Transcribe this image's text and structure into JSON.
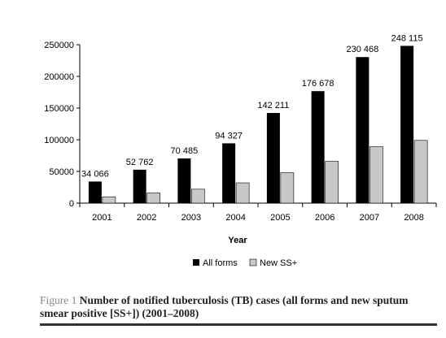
{
  "chart_data": {
    "type": "bar",
    "categories": [
      "2001",
      "2002",
      "2003",
      "2004",
      "2005",
      "2006",
      "2007",
      "2008"
    ],
    "series": [
      {
        "name": "All forms",
        "values": [
          34066,
          52762,
          70485,
          94327,
          142211,
          176678,
          230468,
          248115
        ],
        "color": "#000000"
      },
      {
        "name": "New SS+",
        "values": [
          10000,
          16000,
          22000,
          32000,
          48000,
          66000,
          89000,
          99000
        ],
        "color": "#c8c8c8"
      }
    ],
    "data_labels": [
      "34 066",
      "52 762",
      "70 485",
      "94 327",
      "142 211",
      "176 678",
      "230 468",
      "248 115"
    ],
    "yticks": [
      "0",
      "50000",
      "100000",
      "150000",
      "200000",
      "250000"
    ],
    "ylim": [
      0,
      250000
    ],
    "xlabel": "Year",
    "ylabel": "",
    "legend": [
      "All forms",
      "New SS+"
    ],
    "legend_position": "bottom",
    "grid": false
  },
  "caption": {
    "figure_label": "Figure 1",
    "text": "Number of notified tuberculosis (TB) cases (all forms and new sputum smear positive [SS+]) (2001–2008)"
  }
}
